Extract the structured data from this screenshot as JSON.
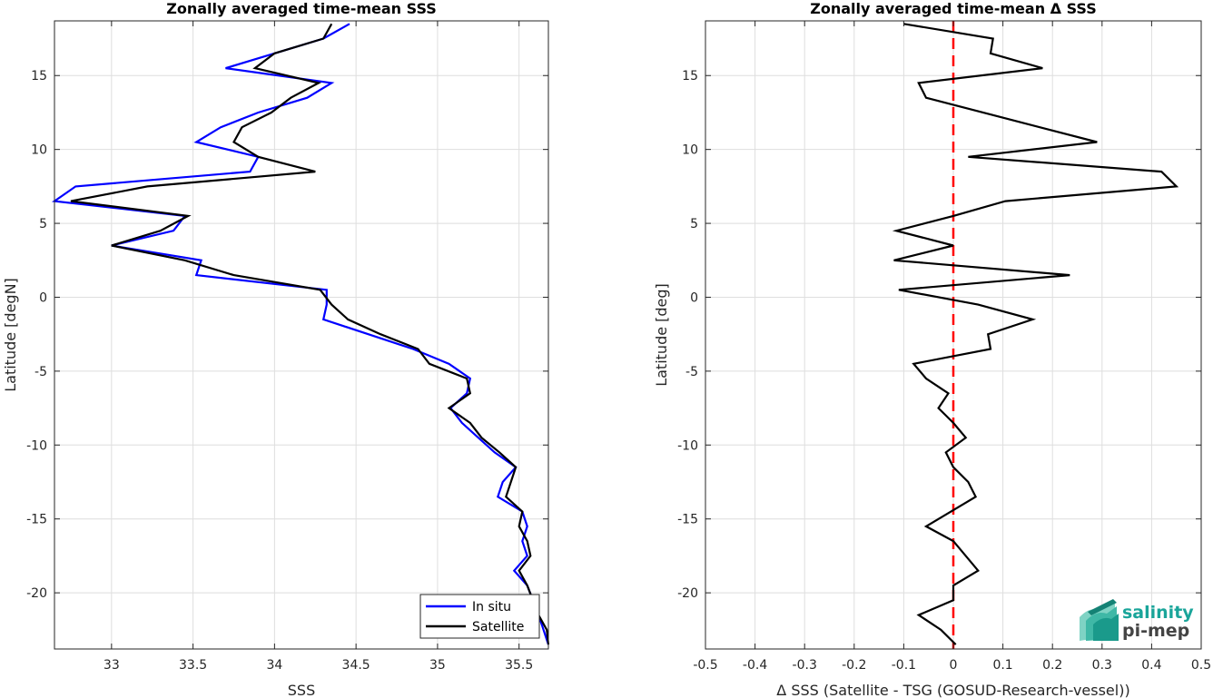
{
  "colors": {
    "insitu": "#0000ff",
    "satellite": "#000000",
    "zero_line": "#ff0000",
    "logo_teal": "#1aa59a",
    "logo_dark": "#444444"
  },
  "logo": {
    "icon": "wave-stack-icon",
    "line1": "salinity",
    "line2": "pi-mep"
  },
  "chart_data": [
    {
      "type": "line",
      "title": "Zonally averaged time-mean SSS",
      "xlabel": "SSS",
      "ylabel": "Latitude [degN]",
      "xlim": [
        32.65,
        35.68
      ],
      "ylim": [
        -23.8,
        18.7
      ],
      "xticks": [
        33,
        33.5,
        34,
        34.5,
        35,
        35.5
      ],
      "yticks": [
        -20,
        -15,
        -10,
        -5,
        0,
        5,
        10,
        15
      ],
      "grid": true,
      "legend_position": "bottom-right",
      "series": [
        {
          "name": "In situ",
          "color_key": "insitu",
          "points": [
            [
              34.46,
              18.5
            ],
            [
              34.3,
              17.5
            ],
            [
              33.7,
              15.5
            ],
            [
              34.35,
              14.5
            ],
            [
              34.2,
              13.5
            ],
            [
              33.9,
              12.5
            ],
            [
              33.67,
              11.5
            ],
            [
              33.52,
              10.5
            ],
            [
              33.9,
              9.5
            ],
            [
              33.85,
              8.5
            ],
            [
              32.78,
              7.5
            ],
            [
              32.65,
              6.5
            ],
            [
              33.45,
              5.5
            ],
            [
              33.38,
              4.5
            ],
            [
              33.0,
              3.5
            ],
            [
              33.55,
              2.5
            ],
            [
              33.52,
              1.5
            ],
            [
              34.32,
              0.5
            ],
            [
              34.32,
              -0.5
            ],
            [
              34.3,
              -1.5
            ],
            [
              34.85,
              -3.5
            ],
            [
              35.07,
              -4.5
            ],
            [
              35.2,
              -5.5
            ],
            [
              35.18,
              -6.5
            ],
            [
              35.08,
              -7.5
            ],
            [
              35.15,
              -8.5
            ],
            [
              35.25,
              -9.5
            ],
            [
              35.35,
              -10.5
            ],
            [
              35.48,
              -11.5
            ],
            [
              35.4,
              -12.5
            ],
            [
              35.37,
              -13.5
            ],
            [
              35.52,
              -14.5
            ],
            [
              35.55,
              -15.5
            ],
            [
              35.52,
              -16.5
            ],
            [
              35.55,
              -17.5
            ],
            [
              35.47,
              -18.5
            ],
            [
              35.55,
              -19.5
            ],
            [
              35.62,
              -21.5
            ],
            [
              35.65,
              -22.5
            ],
            [
              35.68,
              -23.5
            ]
          ]
        },
        {
          "name": "Satellite",
          "color_key": "satellite",
          "points": [
            [
              34.35,
              18.5
            ],
            [
              34.3,
              17.5
            ],
            [
              34.0,
              16.5
            ],
            [
              33.88,
              15.5
            ],
            [
              34.27,
              14.5
            ],
            [
              34.1,
              13.5
            ],
            [
              33.98,
              12.5
            ],
            [
              33.8,
              11.5
            ],
            [
              33.75,
              10.5
            ],
            [
              33.9,
              9.5
            ],
            [
              34.25,
              8.5
            ],
            [
              33.22,
              7.5
            ],
            [
              32.75,
              6.5
            ],
            [
              33.47,
              5.5
            ],
            [
              33.3,
              4.5
            ],
            [
              33.0,
              3.5
            ],
            [
              33.45,
              2.5
            ],
            [
              33.75,
              1.5
            ],
            [
              34.28,
              0.5
            ],
            [
              34.35,
              -0.5
            ],
            [
              34.45,
              -1.5
            ],
            [
              34.65,
              -2.5
            ],
            [
              34.88,
              -3.5
            ],
            [
              34.95,
              -4.5
            ],
            [
              35.18,
              -5.5
            ],
            [
              35.2,
              -6.5
            ],
            [
              35.07,
              -7.5
            ],
            [
              35.2,
              -8.5
            ],
            [
              35.27,
              -9.5
            ],
            [
              35.38,
              -10.5
            ],
            [
              35.48,
              -11.5
            ],
            [
              35.45,
              -12.5
            ],
            [
              35.42,
              -13.5
            ],
            [
              35.52,
              -14.5
            ],
            [
              35.5,
              -15.5
            ],
            [
              35.55,
              -16.5
            ],
            [
              35.57,
              -17.5
            ],
            [
              35.5,
              -18.5
            ],
            [
              35.55,
              -19.5
            ],
            [
              35.62,
              -21.5
            ],
            [
              35.67,
              -22.5
            ],
            [
              35.68,
              -23.5
            ]
          ]
        }
      ]
    },
    {
      "type": "line",
      "title": "Zonally averaged time-mean Δ SSS",
      "xlabel": "Δ SSS (Satellite - TSG (GOSUD-Research-vessel))",
      "ylabel": "Latitude [deg]",
      "xlim": [
        -0.5,
        0.5
      ],
      "ylim": [
        -23.8,
        18.7
      ],
      "xticks": [
        -0.5,
        -0.4,
        -0.3,
        -0.2,
        -0.1,
        0,
        0.1,
        0.2,
        0.3,
        0.4,
        0.5
      ],
      "yticks": [
        -20,
        -15,
        -10,
        -5,
        0,
        5,
        10,
        15
      ],
      "grid": true,
      "reference_line": {
        "x": 0,
        "style": "dashed",
        "color_key": "zero_line"
      },
      "series": [
        {
          "color_key": "satellite",
          "points": [
            [
              -0.1,
              18.5
            ],
            [
              0.08,
              17.5
            ],
            [
              0.075,
              16.5
            ],
            [
              0.18,
              15.5
            ],
            [
              -0.07,
              14.5
            ],
            [
              -0.055,
              13.5
            ],
            [
              0.29,
              10.5
            ],
            [
              0.03,
              9.5
            ],
            [
              0.42,
              8.5
            ],
            [
              0.45,
              7.5
            ],
            [
              0.105,
              6.5
            ],
            [
              0.0,
              5.5
            ],
            [
              -0.115,
              4.5
            ],
            [
              0.0,
              3.5
            ],
            [
              -0.12,
              2.5
            ],
            [
              0.235,
              1.5
            ],
            [
              -0.11,
              0.5
            ],
            [
              0.05,
              -0.5
            ],
            [
              0.16,
              -1.5
            ],
            [
              0.07,
              -2.5
            ],
            [
              0.075,
              -3.5
            ],
            [
              -0.08,
              -4.5
            ],
            [
              -0.055,
              -5.5
            ],
            [
              -0.01,
              -6.5
            ],
            [
              -0.03,
              -7.5
            ],
            [
              0.0,
              -8.5
            ],
            [
              0.025,
              -9.5
            ],
            [
              -0.015,
              -10.5
            ],
            [
              0.0,
              -11.5
            ],
            [
              0.03,
              -12.5
            ],
            [
              0.045,
              -13.5
            ],
            [
              -0.055,
              -15.5
            ],
            [
              0.0,
              -16.5
            ],
            [
              0.05,
              -18.5
            ],
            [
              0.0,
              -19.5
            ],
            [
              0.0,
              -20.5
            ],
            [
              -0.07,
              -21.5
            ],
            [
              -0.025,
              -22.5
            ],
            [
              0.005,
              -23.5
            ]
          ]
        }
      ]
    }
  ]
}
